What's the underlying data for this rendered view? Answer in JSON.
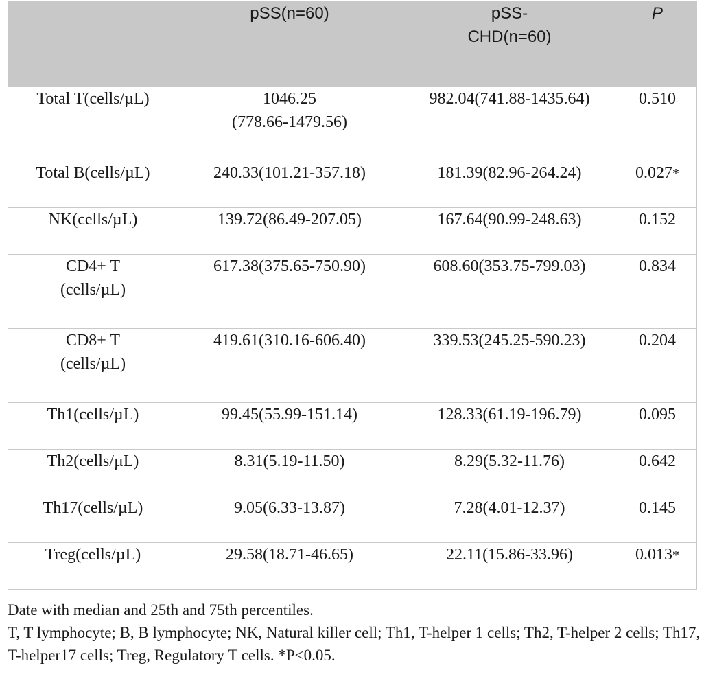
{
  "table": {
    "headers": [
      "",
      "pSS(n=60)",
      "pSS-\nCHD(n=60)",
      "P"
    ],
    "rows": [
      {
        "label": "Total T(cells/µL)",
        "pss": "1046.25\n(778.66-1479.56)",
        "pss_chd": "982.04(741.88-1435.64)",
        "p": "0.510",
        "sig": ""
      },
      {
        "label": "Total B(cells/µL)",
        "pss": "240.33(101.21-357.18)",
        "pss_chd": "181.39(82.96-264.24)",
        "p": "0.027",
        "sig": "*"
      },
      {
        "label": "NK(cells/µL)",
        "pss": "139.72(86.49-207.05)",
        "pss_chd": "167.64(90.99-248.63)",
        "p": "0.152",
        "sig": ""
      },
      {
        "label": "CD4+ T\n(cells/µL)",
        "pss": "617.38(375.65-750.90)",
        "pss_chd": "608.60(353.75-799.03)",
        "p": "0.834",
        "sig": ""
      },
      {
        "label": "CD8+ T\n(cells/µL)",
        "pss": "419.61(310.16-606.40)",
        "pss_chd": "339.53(245.25-590.23)",
        "p": "0.204",
        "sig": ""
      },
      {
        "label": "Th1(cells/µL)",
        "pss": "99.45(55.99-151.14)",
        "pss_chd": "128.33(61.19-196.79)",
        "p": "0.095",
        "sig": ""
      },
      {
        "label": "Th2(cells/µL)",
        "pss": "8.31(5.19-11.50)",
        "pss_chd": "8.29(5.32-11.76)",
        "p": "0.642",
        "sig": ""
      },
      {
        "label": "Th17(cells/µL)",
        "pss": "9.05(6.33-13.87)",
        "pss_chd": "7.28(4.01-12.37)",
        "p": "0.145",
        "sig": ""
      },
      {
        "label": "Treg(cells/µL)",
        "pss": "29.58(18.71-46.65)",
        "pss_chd": "22.11(15.86-33.96)",
        "p": "0.013",
        "sig": "*"
      }
    ]
  },
  "notes": {
    "line1": "Date with median and 25th and 75th percentiles.",
    "line2": "T, T lymphocyte; B, B lymphocyte; NK, Natural killer cell; Th1, T-helper 1 cells; Th2, T-helper 2 cells; Th17, T-helper17 cells; Treg, Regulatory T cells. *P<0.05."
  }
}
